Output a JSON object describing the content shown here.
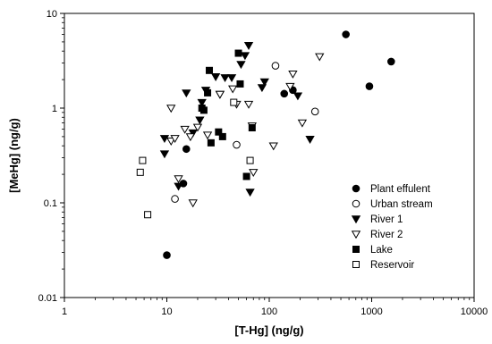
{
  "chart_data": {
    "type": "scatter",
    "title": "",
    "xlabel": "[T-Hg] (ng/g)",
    "ylabel": "[MeHg] (ng/g)",
    "xscale": "log",
    "yscale": "log",
    "xlim": [
      1,
      10000
    ],
    "ylim": [
      0.01,
      10
    ],
    "x_ticks": [
      "1",
      "10",
      "100",
      "1000",
      "10000"
    ],
    "y_ticks": [
      "0.01",
      "0.1",
      "1",
      "10"
    ],
    "grid": false,
    "legend_position": "bottom-right",
    "series": [
      {
        "name": "Plant effulent",
        "marker": "circle-filled",
        "points": [
          [
            10,
            0.028
          ],
          [
            14.5,
            0.16
          ],
          [
            15.5,
            0.37
          ],
          [
            140,
            1.42
          ],
          [
            170,
            1.55
          ],
          [
            560,
            6.0
          ],
          [
            950,
            1.7
          ],
          [
            1550,
            3.1
          ]
        ]
      },
      {
        "name": "Urban stream",
        "marker": "circle-open",
        "points": [
          [
            12,
            0.11
          ],
          [
            48,
            0.41
          ],
          [
            115,
            2.8
          ],
          [
            280,
            0.92
          ]
        ]
      },
      {
        "name": "River 1",
        "marker": "triangle-down-filled",
        "points": [
          [
            9.5,
            0.48
          ],
          [
            9.5,
            0.33
          ],
          [
            13,
            0.15
          ],
          [
            15.5,
            1.45
          ],
          [
            18,
            0.55
          ],
          [
            21,
            0.75
          ],
          [
            22,
            1.15
          ],
          [
            24,
            1.55
          ],
          [
            30,
            2.15
          ],
          [
            33,
            1.4
          ],
          [
            37,
            2.1
          ],
          [
            43,
            2.1
          ],
          [
            53,
            2.9
          ],
          [
            58,
            3.6
          ],
          [
            63,
            4.6
          ],
          [
            65,
            0.13
          ],
          [
            85,
            1.65
          ],
          [
            90,
            1.9
          ],
          [
            190,
            1.35
          ],
          [
            250,
            0.47
          ]
        ]
      },
      {
        "name": "River 2",
        "marker": "triangle-down-open",
        "points": [
          [
            11,
            1.0
          ],
          [
            11,
            0.45
          ],
          [
            12,
            0.48
          ],
          [
            13,
            0.18
          ],
          [
            15,
            0.6
          ],
          [
            17,
            0.5
          ],
          [
            18,
            0.1
          ],
          [
            20,
            0.63
          ],
          [
            25,
            0.52
          ],
          [
            33,
            1.4
          ],
          [
            44,
            1.6
          ],
          [
            48,
            1.1
          ],
          [
            63,
            1.1
          ],
          [
            68,
            0.65
          ],
          [
            70,
            0.21
          ],
          [
            110,
            0.4
          ],
          [
            160,
            1.7
          ],
          [
            170,
            2.3
          ],
          [
            210,
            0.7
          ],
          [
            310,
            3.5
          ]
        ]
      },
      {
        "name": "Lake",
        "marker": "square-filled",
        "points": [
          [
            22,
            1.0
          ],
          [
            23,
            0.95
          ],
          [
            25,
            1.45
          ],
          [
            26,
            2.5
          ],
          [
            27,
            0.43
          ],
          [
            32,
            0.56
          ],
          [
            35,
            0.5
          ],
          [
            50,
            3.8
          ],
          [
            52,
            1.8
          ],
          [
            60,
            0.19
          ],
          [
            68,
            0.62
          ]
        ]
      },
      {
        "name": "Reservoir",
        "marker": "square-open",
        "points": [
          [
            5.5,
            0.21
          ],
          [
            5.8,
            0.28
          ],
          [
            6.5,
            0.075
          ],
          [
            45,
            1.15
          ],
          [
            65,
            0.28
          ]
        ]
      }
    ]
  }
}
